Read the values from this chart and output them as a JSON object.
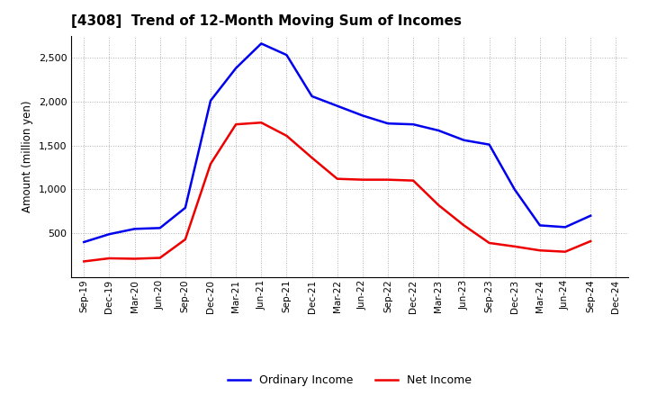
{
  "title": "[4308]  Trend of 12-Month Moving Sum of Incomes",
  "ylabel": "Amount (million yen)",
  "background_color": "#ffffff",
  "grid_color": "#b0b0b0",
  "title_fontsize": 11,
  "labels": {
    "x_labels": [
      "Sep-19",
      "Dec-19",
      "Mar-20",
      "Jun-20",
      "Sep-20",
      "Dec-20",
      "Mar-21",
      "Jun-21",
      "Sep-21",
      "Dec-21",
      "Mar-22",
      "Jun-22",
      "Sep-22",
      "Dec-22",
      "Mar-23",
      "Jun-23",
      "Sep-23",
      "Dec-23",
      "Mar-24",
      "Jun-24",
      "Sep-24",
      "Dec-24"
    ]
  },
  "ordinary_income": [
    400,
    490,
    550,
    560,
    790,
    2010,
    2380,
    2660,
    2530,
    2060,
    1950,
    1840,
    1750,
    1740,
    1670,
    1560,
    1510,
    1000,
    590,
    570,
    700,
    null
  ],
  "net_income": [
    180,
    215,
    210,
    220,
    430,
    1290,
    1740,
    1760,
    1610,
    1360,
    1120,
    1110,
    1110,
    1100,
    820,
    590,
    390,
    350,
    305,
    290,
    410,
    null
  ],
  "ordinary_color": "#0000ee",
  "net_color": "#ee0000",
  "ylim": [
    0,
    2750
  ],
  "yticks": [
    500,
    1000,
    1500,
    2000,
    2500
  ],
  "line_width": 1.8,
  "legend_labels": [
    "Ordinary Income",
    "Net Income"
  ]
}
